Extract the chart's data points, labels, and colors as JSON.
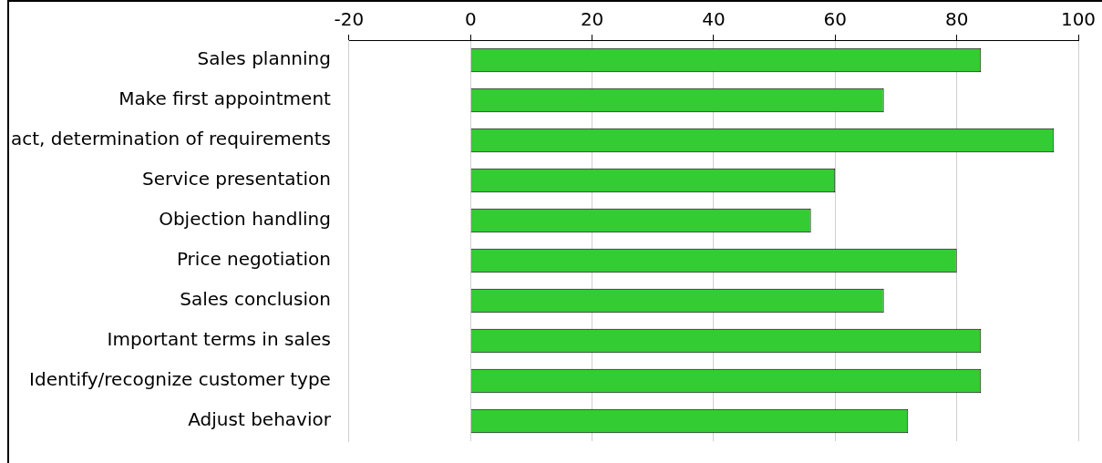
{
  "chart_data": {
    "type": "bar",
    "orientation": "horizontal",
    "categories": [
      "Sales planning",
      "Make first appointment",
      "act, determination of requirements",
      "Service presentation",
      "Objection handling",
      "Price negotiation",
      "Sales conclusion",
      "Important terms in sales",
      "Identify/recognize customer type",
      "Adjust behavior"
    ],
    "values": [
      84,
      68,
      96,
      60,
      56,
      80,
      68,
      84,
      84,
      72
    ],
    "color": "#33cc33",
    "xlim": [
      -20,
      100
    ],
    "xticks": [
      -20,
      0,
      20,
      40,
      60,
      80,
      100
    ],
    "grid": "x",
    "legend": false
  }
}
